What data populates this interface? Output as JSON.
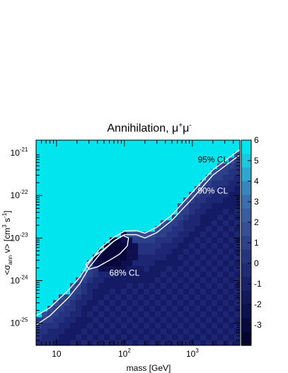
{
  "chart_data": {
    "type": "heatmap",
    "title_main": "Annihilation, ",
    "title_math": "μ",
    "title_sup1": "+",
    "title_math2": "μ",
    "title_sup2": "-",
    "xlabel": "mass [GeV]",
    "ylabel_parts": {
      "open": "<σ",
      "sub": "ann",
      "mid": " v> [cm",
      "sup1": "3",
      "mid2": " s",
      "sup2": "-1",
      "close": "]"
    },
    "x_scale": "log",
    "y_scale": "log",
    "xlim": [
      5,
      5000
    ],
    "ylim": [
      3e-26,
      2e-21
    ],
    "x_ticks": [
      {
        "value": 10,
        "label": "10",
        "sup": ""
      },
      {
        "value": 100,
        "label": "10",
        "sup": "2"
      },
      {
        "value": 1000,
        "label": "10",
        "sup": "3"
      }
    ],
    "y_ticks": [
      {
        "value": 1e-25,
        "label": "10",
        "sup": "-25"
      },
      {
        "value": 1e-24,
        "label": "10",
        "sup": "-24"
      },
      {
        "value": 1e-23,
        "label": "10",
        "sup": "-23"
      },
      {
        "value": 1e-22,
        "label": "10",
        "sup": "-22"
      },
      {
        "value": 1e-21,
        "label": "10",
        "sup": "-21"
      }
    ],
    "colorbar": {
      "min": -4,
      "max": 6,
      "ticks": [
        "6",
        "5",
        "4",
        "3",
        "2",
        "1",
        "0",
        "-1",
        "-2",
        "-3"
      ],
      "tick_values": [
        6,
        5,
        4,
        3,
        2,
        1,
        0,
        -1,
        -2,
        -3
      ],
      "colors": [
        "#06063a",
        "#0d0f4f",
        "#141a63",
        "#1c2673",
        "#24327f",
        "#2c3f89",
        "#344c93",
        "#3e5a9d",
        "#00e5ee"
      ]
    },
    "contours": [
      {
        "label": "95% CL",
        "points": [
          [
            5,
            1.5e-25
          ],
          [
            8,
            2.3e-25
          ],
          [
            15,
            6e-25
          ],
          [
            22,
            1.2e-24
          ],
          [
            30,
            2.6e-24
          ],
          [
            45,
            6e-24
          ],
          [
            70,
            1.05e-23
          ],
          [
            100,
            1.45e-23
          ],
          [
            150,
            1.5e-23
          ],
          [
            200,
            1.3e-23
          ],
          [
            300,
            1.8e-23
          ],
          [
            500,
            3.5e-23
          ],
          [
            1000,
            1.2e-22
          ],
          [
            2000,
            4e-22
          ],
          [
            5000,
            1.2e-21
          ]
        ]
      },
      {
        "label": "90% CL",
        "points": [
          [
            5,
            9e-26
          ],
          [
            8,
            1.5e-25
          ],
          [
            15,
            4e-25
          ],
          [
            22,
            8.5e-25
          ],
          [
            30,
            2e-24
          ],
          [
            45,
            4.5e-24
          ],
          [
            70,
            8.5e-24
          ],
          [
            100,
            1.2e-23
          ],
          [
            150,
            1.2e-23
          ],
          [
            200,
            1e-23
          ],
          [
            300,
            1.35e-23
          ],
          [
            500,
            2.6e-23
          ],
          [
            1000,
            8.5e-23
          ],
          [
            2000,
            3e-22
          ],
          [
            5000,
            9e-22
          ]
        ]
      },
      {
        "label": "68% CL",
        "closed": true,
        "points": [
          [
            27,
            2.4e-24
          ],
          [
            35,
            3.6e-24
          ],
          [
            50,
            5.5e-24
          ],
          [
            70,
            8.5e-24
          ],
          [
            95,
            1.15e-23
          ],
          [
            115,
            1e-23
          ],
          [
            110,
            6.5e-24
          ],
          [
            85,
            4.2e-24
          ],
          [
            60,
            3e-24
          ],
          [
            40,
            2.1e-24
          ],
          [
            30,
            1.85e-24
          ],
          [
            27,
            2.4e-24
          ]
        ]
      }
    ],
    "annotations": [
      {
        "text": "95% CL",
        "x": 2000,
        "y": 6e-22,
        "color": "dark"
      },
      {
        "text": "90% CL",
        "x": 2000,
        "y": 1.1e-22,
        "color": "light"
      },
      {
        "text": "68% CL",
        "x": 100,
        "y": 1.3e-24,
        "color": "light"
      }
    ]
  }
}
